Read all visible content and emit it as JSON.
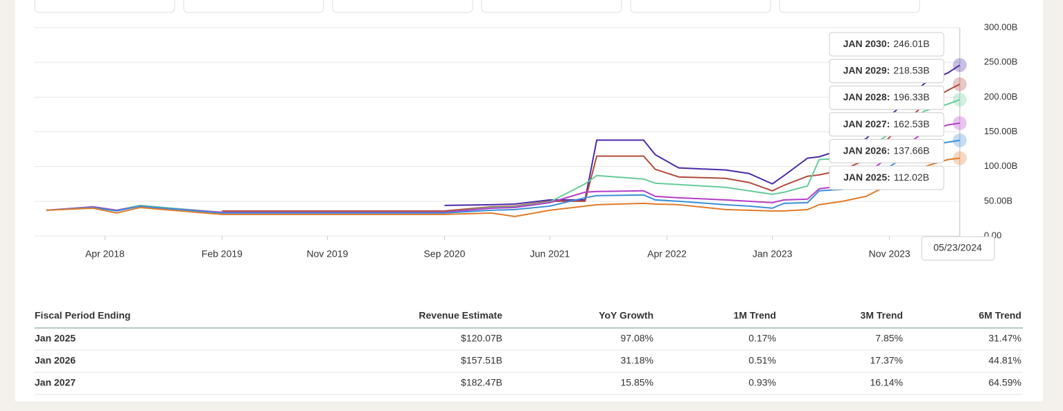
{
  "chart_data": {
    "type": "line",
    "x": [
      "2017-11",
      "2018-03",
      "2018-05",
      "2018-07",
      "2018-09",
      "2019-02",
      "2020-09",
      "2021-01",
      "2021-03",
      "2021-06",
      "2021-09",
      "2021-10",
      "2022-02",
      "2022-03",
      "2022-05",
      "2022-09",
      "2022-11",
      "2023-01",
      "2023-02",
      "2023-04",
      "2023-05",
      "2023-07",
      "2023-09",
      "2024-02",
      "2024-04",
      "2024-05"
    ],
    "xlim": [
      "2017-10",
      "2024-05"
    ],
    "xticks": [
      {
        "value": "2018-04",
        "label": "Apr 2018"
      },
      {
        "value": "2019-02",
        "label": "Feb 2019"
      },
      {
        "value": "2019-11",
        "label": "Nov 2019"
      },
      {
        "value": "2020-09",
        "label": "Sep 2020"
      },
      {
        "value": "2021-06",
        "label": "Jun 2021"
      },
      {
        "value": "2022-04",
        "label": "Apr 2022"
      },
      {
        "value": "2023-01",
        "label": "Jan 2023"
      },
      {
        "value": "2023-11",
        "label": "Nov 2023"
      }
    ],
    "ylim": [
      0,
      300
    ],
    "yticks": [
      {
        "value": 0,
        "label": "0.00"
      },
      {
        "value": 50,
        "label": "50.00B"
      },
      {
        "value": 100,
        "label": "100.00B"
      },
      {
        "value": 150,
        "label": "150.00B"
      },
      {
        "value": 200,
        "label": "200.00B"
      },
      {
        "value": 250,
        "label": "250.00B"
      },
      {
        "value": 300,
        "label": "300.00B"
      }
    ],
    "grid": true,
    "crosshair_label": "05/23/2024",
    "series": [
      {
        "label": "JAN 2030:",
        "value_label": "246.01B",
        "color": "#4b2aa8",
        "values": [
          null,
          null,
          null,
          null,
          null,
          null,
          44,
          45,
          46,
          52,
          52,
          138,
          138,
          117,
          98,
          95,
          90,
          75,
          87,
          112,
          114,
          125,
          140,
          220,
          235,
          246.01
        ]
      },
      {
        "label": "JAN 2029:",
        "value_label": "218.53B",
        "color": "#b04a3a",
        "values": [
          null,
          null,
          null,
          null,
          null,
          36,
          36,
          42,
          43,
          50,
          50,
          115,
          115,
          96,
          85,
          83,
          77,
          65,
          73,
          86,
          88,
          95,
          110,
          190,
          210,
          218.53
        ]
      },
      {
        "label": "JAN 2028:",
        "value_label": "196.33B",
        "color": "#66cc99",
        "values": [
          37,
          42,
          37,
          44,
          41,
          34,
          34,
          41,
          42,
          49,
          75,
          87,
          82,
          76,
          74,
          70,
          65,
          60,
          63,
          72,
          110,
          112,
          125,
          180,
          190,
          196.33
        ]
      },
      {
        "label": "JAN 2027:",
        "value_label": "162.53B",
        "color": "#b43cc8",
        "values": [
          37,
          42,
          37,
          43,
          40,
          34,
          34,
          40,
          41,
          48,
          63,
          64,
          65,
          57,
          55,
          52,
          50,
          48,
          52,
          53,
          68,
          72,
          90,
          150,
          160,
          162.53
        ]
      },
      {
        "label": "JAN 2026:",
        "value_label": "137.66B",
        "color": "#3b8fd9",
        "values": [
          37,
          41,
          36,
          43,
          40,
          33,
          33,
          37,
          38,
          43,
          55,
          58,
          59,
          52,
          50,
          45,
          43,
          40,
          47,
          48,
          65,
          67,
          80,
          130,
          135,
          137.66
        ]
      },
      {
        "label": "JAN 2025:",
        "value_label": "112.02B",
        "color": "#e07b2a",
        "values": [
          37,
          40,
          33,
          41,
          38,
          31,
          31,
          33,
          28,
          37,
          43,
          45,
          47,
          46,
          45,
          38,
          37,
          36,
          36,
          38,
          45,
          50,
          57,
          100,
          110,
          112.02
        ]
      }
    ]
  },
  "table": {
    "header": [
      "Fiscal Period Ending",
      "Revenue Estimate",
      "YoY Growth",
      "1M Trend",
      "3M Trend",
      "6M Trend"
    ],
    "rows": [
      [
        "Jan 2025",
        "$120.07B",
        "97.08%",
        "0.17%",
        "7.85%",
        "31.47%"
      ],
      [
        "Jan 2026",
        "$157.51B",
        "31.18%",
        "0.51%",
        "17.37%",
        "44.81%"
      ],
      [
        "Jan 2027",
        "$182.47B",
        "15.85%",
        "0.93%",
        "16.14%",
        "64.59%"
      ]
    ]
  }
}
